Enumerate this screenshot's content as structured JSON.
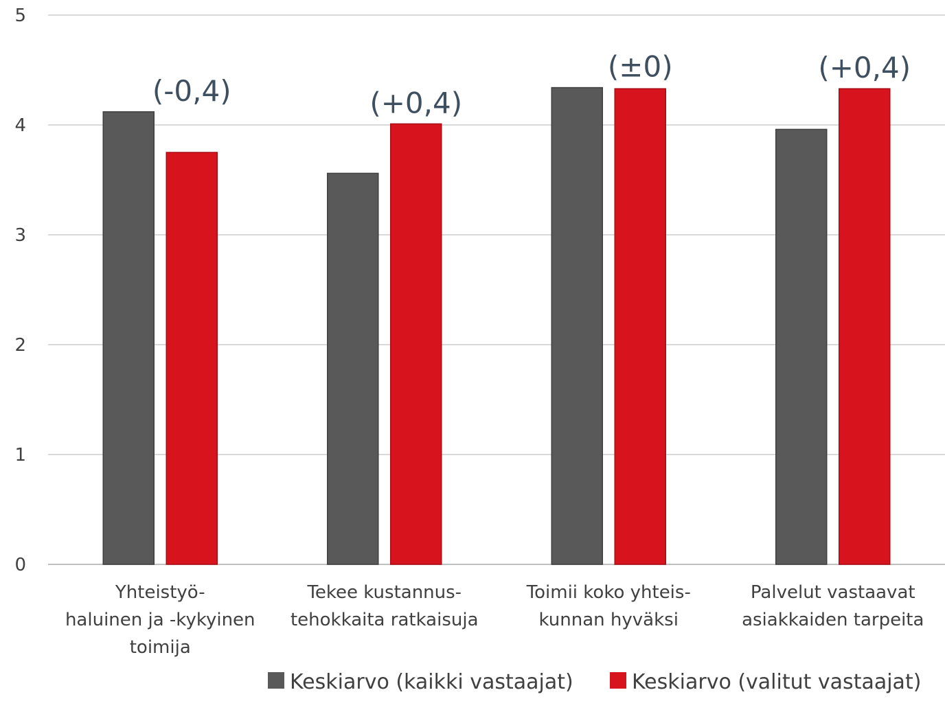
{
  "chart_data": {
    "type": "bar",
    "categories": [
      [
        "Yhteistyö-",
        "haluinen ja -kykyinen",
        "toimija"
      ],
      [
        "Tekee kustannus-",
        "tehokkaita ratkaisuja"
      ],
      [
        "Toimii koko yhteis-",
        "kunnan hyväksi"
      ],
      [
        "Palvelut vastaavat",
        "asiakkaiden tarpeita"
      ]
    ],
    "series": [
      {
        "name": "Keskiarvo (kaikki vastaajat)",
        "color": "#595959",
        "values": [
          4.12,
          3.56,
          4.34,
          3.96
        ]
      },
      {
        "name": "Keskiarvo (valitut vastaajat)",
        "color": "#d7141e",
        "values": [
          3.75,
          4.01,
          4.33,
          4.33
        ]
      }
    ],
    "annotations": [
      "(-0,4)",
      "(+0,4)",
      "(±0)",
      "(+0,4)"
    ],
    "yticks": [
      "0",
      "1",
      "2",
      "3",
      "4",
      "5"
    ],
    "ylim": [
      0,
      5
    ],
    "grid": true,
    "legend_position": "bottom-right",
    "title": "",
    "xlabel": "",
    "ylabel": ""
  }
}
